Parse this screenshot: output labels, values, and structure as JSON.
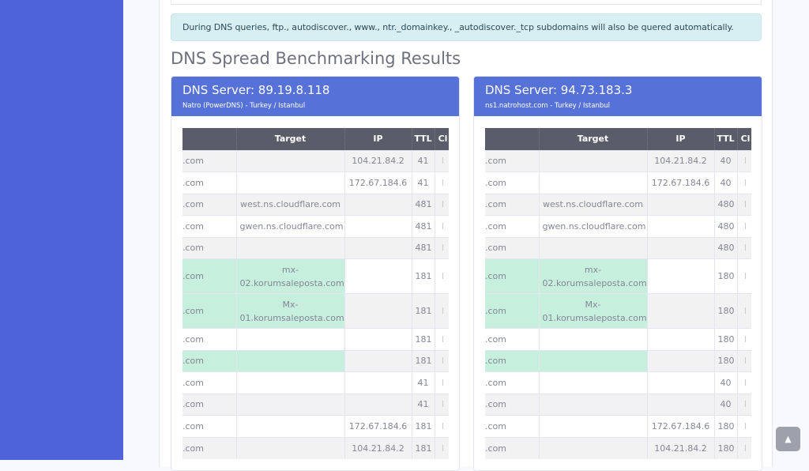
{
  "alert": "During DNS queries, ftp., autodiscover., www., ntr._domainkey., _autodiscover._tcp subdomains will also be quered automatically.",
  "heading": "DNS Spread Benchmarking Results",
  "columns": [
    "",
    "Target",
    "IP",
    "TTL",
    "Cl"
  ],
  "servers": [
    {
      "title": "DNS Server: 89.19.8.118",
      "subtitle": "Natro (PowerDNS) - Turkey / Istanbul",
      "rows": [
        {
          "name": ".com",
          "target": "",
          "ip": "104.21.84.2",
          "ttl": "41",
          "cl": "I",
          "green": false
        },
        {
          "name": ".com",
          "target": "",
          "ip": "172.67.184.6",
          "ttl": "41",
          "cl": "I",
          "green": false
        },
        {
          "name": ".com",
          "target": "west.ns.cloudflare.com",
          "ip": "",
          "ttl": "481",
          "cl": "I",
          "green": false
        },
        {
          "name": ".com",
          "target": "gwen.ns.cloudflare.com",
          "ip": "",
          "ttl": "481",
          "cl": "I",
          "green": false
        },
        {
          "name": ".com",
          "target": "",
          "ip": "",
          "ttl": "481",
          "cl": "I",
          "green": false
        },
        {
          "name": ".com",
          "target": "mx-02.korumsaleposta.com",
          "ip": "",
          "ttl": "181",
          "cl": "I",
          "green": true
        },
        {
          "name": ".com",
          "target": "Mx-01.korumsaleposta.com",
          "ip": "",
          "ttl": "181",
          "cl": "I",
          "green": true
        },
        {
          "name": ".com",
          "target": "",
          "ip": "",
          "ttl": "181",
          "cl": "I",
          "green": false
        },
        {
          "name": ".com",
          "target": "",
          "ip": "",
          "ttl": "181",
          "cl": "I",
          "green": true
        },
        {
          "name": ".com",
          "target": "",
          "ip": "",
          "ttl": "41",
          "cl": "I",
          "green": false
        },
        {
          "name": ".com",
          "target": "",
          "ip": "",
          "ttl": "41",
          "cl": "I",
          "green": false
        },
        {
          "name": ".com",
          "target": "",
          "ip": "172.67.184.6",
          "ttl": "181",
          "cl": "I",
          "green": false
        },
        {
          "name": ".com",
          "target": "",
          "ip": "104.21.84.2",
          "ttl": "181",
          "cl": "I",
          "green": false
        }
      ]
    },
    {
      "title": "DNS Server: 94.73.183.3",
      "subtitle": "ns1.natrohost.com - Turkey / Istanbul",
      "rows": [
        {
          "name": ".com",
          "target": "",
          "ip": "104.21.84.2",
          "ttl": "40",
          "cl": "I",
          "green": false
        },
        {
          "name": ".com",
          "target": "",
          "ip": "172.67.184.6",
          "ttl": "40",
          "cl": "I",
          "green": false
        },
        {
          "name": ".com",
          "target": "west.ns.cloudflare.com",
          "ip": "",
          "ttl": "480",
          "cl": "I",
          "green": false
        },
        {
          "name": ".com",
          "target": "gwen.ns.cloudflare.com",
          "ip": "",
          "ttl": "480",
          "cl": "I",
          "green": false
        },
        {
          "name": ".com",
          "target": "",
          "ip": "",
          "ttl": "480",
          "cl": "I",
          "green": false
        },
        {
          "name": ".com",
          "target": "mx-02.korumsaleposta.com",
          "ip": "",
          "ttl": "180",
          "cl": "I",
          "green": true
        },
        {
          "name": ".com",
          "target": "Mx-01.korumsaleposta.com",
          "ip": "",
          "ttl": "180",
          "cl": "I",
          "green": true
        },
        {
          "name": ".com",
          "target": "",
          "ip": "",
          "ttl": "180",
          "cl": "I",
          "green": false
        },
        {
          "name": ".com",
          "target": "",
          "ip": "",
          "ttl": "180",
          "cl": "I",
          "green": true
        },
        {
          "name": ".com",
          "target": "",
          "ip": "",
          "ttl": "40",
          "cl": "I",
          "green": false
        },
        {
          "name": ".com",
          "target": "",
          "ip": "",
          "ttl": "40",
          "cl": "I",
          "green": false
        },
        {
          "name": ".com",
          "target": "",
          "ip": "172.67.184.6",
          "ttl": "180",
          "cl": "I",
          "green": false
        },
        {
          "name": ".com",
          "target": "",
          "ip": "104.21.84.2",
          "ttl": "180",
          "cl": "I",
          "green": false
        }
      ]
    }
  ],
  "scroll_top_icon": "chevron-up-icon",
  "colors": {
    "sidebar": "#4e63d8",
    "card_header": "#5672d9",
    "table_header": "#5a5c69",
    "highlight": "#c6efdd"
  }
}
